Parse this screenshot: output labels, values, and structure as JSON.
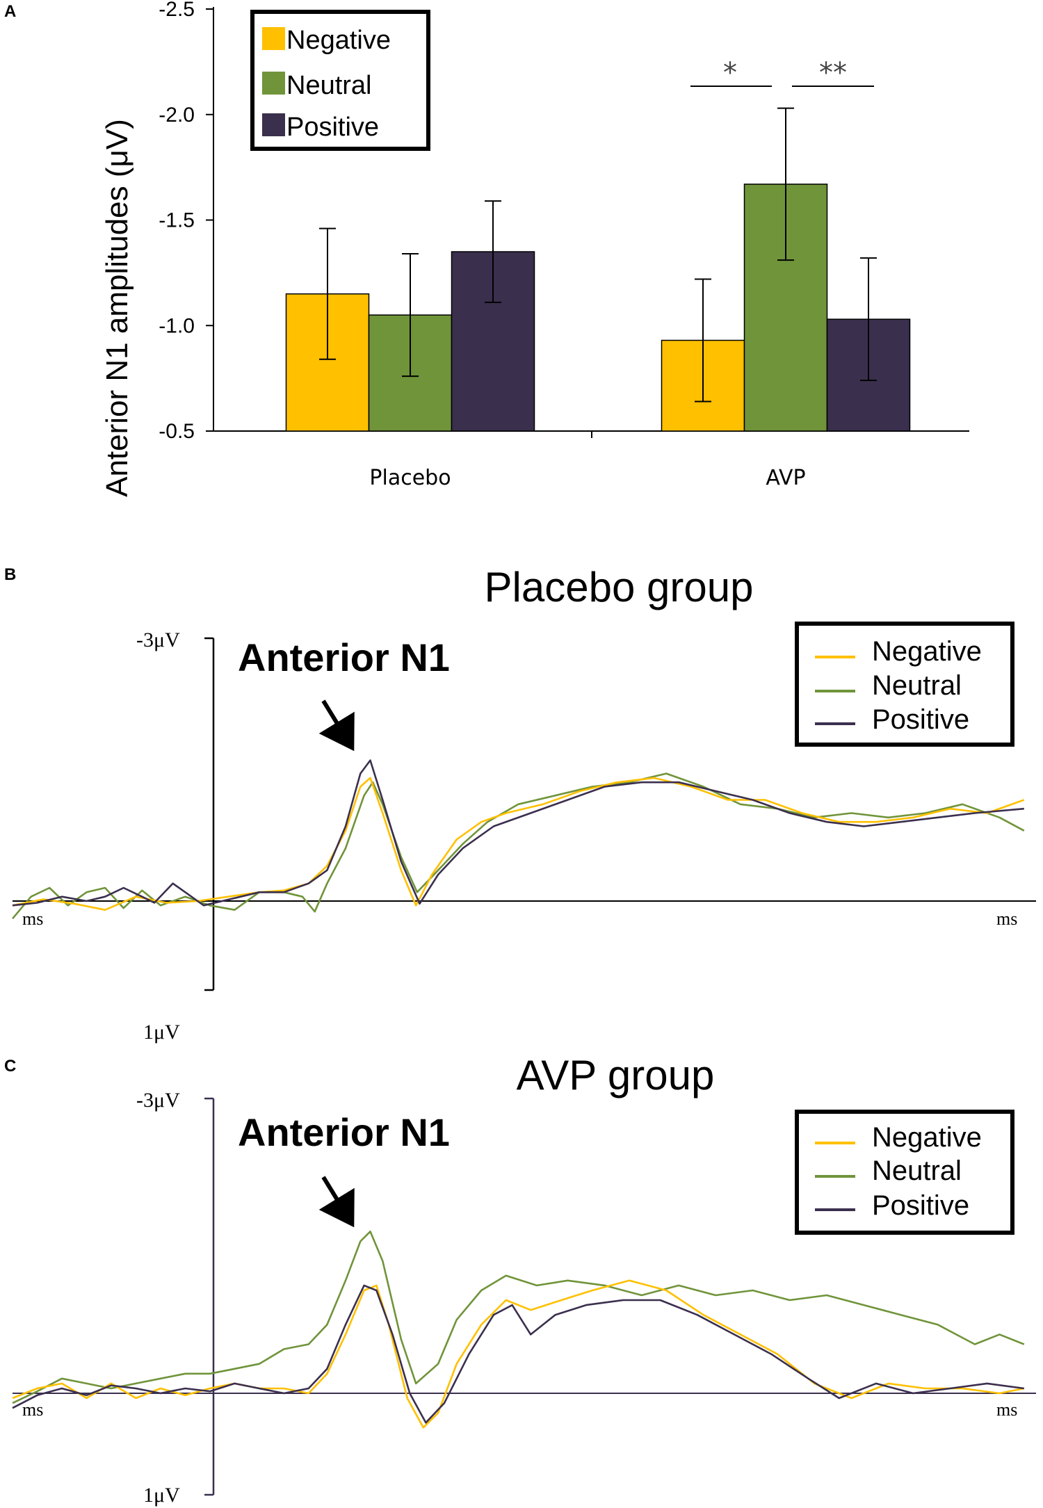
{
  "colors": {
    "negative": "#FFC000",
    "neutral": "#70943A",
    "positive": "#3B2F4E"
  },
  "chart_data": [
    {
      "panel": "A",
      "type": "bar",
      "title": "",
      "xlabel": "",
      "ylabel": "Anterior N1 amplitudes (μV)",
      "ylim": [
        -0.5,
        -2.5
      ],
      "ytick_labels": [
        "-0.5",
        "-1.0",
        "-1.5",
        "-2.0",
        "-2.5"
      ],
      "categories": [
        "Placebo",
        "AVP"
      ],
      "series": [
        {
          "name": "Negative",
          "values": [
            -1.15,
            -0.93
          ],
          "errors": [
            0.31,
            0.29
          ]
        },
        {
          "name": "Neutral",
          "values": [
            -1.05,
            -1.67
          ],
          "errors": [
            0.29,
            0.36
          ]
        },
        {
          "name": "Positive",
          "values": [
            -1.35,
            -1.03
          ],
          "errors": [
            0.24,
            0.29
          ]
        }
      ],
      "legend": [
        "Negative",
        "Neutral",
        "Positive"
      ],
      "significance": [
        "*",
        "**"
      ]
    },
    {
      "panel": "B",
      "type": "line",
      "title": "Placebo group",
      "y_top_label": "-3μV",
      "y_bottom_label": "1μV",
      "x_left_label": "ms",
      "x_right_label": "ms",
      "annotation": "Anterior N1",
      "ylim": [
        1,
        -3
      ],
      "legend": [
        "Negative",
        "Neutral",
        "Positive"
      ],
      "series": [
        {
          "name": "Negative",
          "points": [
            [
              -200,
              0.05
            ],
            [
              -175,
              -0.02
            ],
            [
              -150,
              0.03
            ],
            [
              -125,
              0.1
            ],
            [
              -100,
              -0.05
            ],
            [
              -75,
              0.02
            ],
            [
              -50,
              0.0
            ],
            [
              -25,
              -0.05
            ],
            [
              0,
              -0.1
            ],
            [
              20,
              -0.12
            ],
            [
              40,
              -0.2
            ],
            [
              55,
              -0.4
            ],
            [
              70,
              -0.8
            ],
            [
              82,
              -1.3
            ],
            [
              90,
              -1.4
            ],
            [
              100,
              -1.0
            ],
            [
              115,
              -0.35
            ],
            [
              127,
              0.05
            ],
            [
              140,
              -0.3
            ],
            [
              160,
              -0.7
            ],
            [
              180,
              -0.9
            ],
            [
              200,
              -1.0
            ],
            [
              230,
              -1.1
            ],
            [
              260,
              -1.25
            ],
            [
              290,
              -1.35
            ],
            [
              320,
              -1.4
            ],
            [
              350,
              -1.3
            ],
            [
              380,
              -1.15
            ],
            [
              410,
              -1.15
            ],
            [
              440,
              -1.0
            ],
            [
              470,
              -0.9
            ],
            [
              500,
              -0.9
            ],
            [
              530,
              -0.95
            ],
            [
              560,
              -1.05
            ],
            [
              590,
              -1.0
            ],
            [
              620,
              -1.15
            ]
          ]
        },
        {
          "name": "Neutral",
          "points": [
            [
              -200,
              0.2
            ],
            [
              -185,
              -0.05
            ],
            [
              -170,
              -0.15
            ],
            [
              -155,
              0.05
            ],
            [
              -140,
              -0.1
            ],
            [
              -125,
              -0.15
            ],
            [
              -110,
              0.08
            ],
            [
              -95,
              -0.12
            ],
            [
              -80,
              0.05
            ],
            [
              -60,
              -0.05
            ],
            [
              -40,
              0.05
            ],
            [
              -20,
              0.1
            ],
            [
              0,
              -0.1
            ],
            [
              20,
              -0.1
            ],
            [
              35,
              -0.05
            ],
            [
              45,
              0.12
            ],
            [
              55,
              -0.2
            ],
            [
              70,
              -0.6
            ],
            [
              85,
              -1.2
            ],
            [
              92,
              -1.35
            ],
            [
              100,
              -1.1
            ],
            [
              115,
              -0.5
            ],
            [
              128,
              -0.1
            ],
            [
              145,
              -0.35
            ],
            [
              165,
              -0.65
            ],
            [
              185,
              -0.9
            ],
            [
              210,
              -1.1
            ],
            [
              240,
              -1.2
            ],
            [
              270,
              -1.3
            ],
            [
              300,
              -1.35
            ],
            [
              330,
              -1.45
            ],
            [
              360,
              -1.3
            ],
            [
              390,
              -1.1
            ],
            [
              420,
              -1.05
            ],
            [
              450,
              -0.95
            ],
            [
              480,
              -1.0
            ],
            [
              510,
              -0.95
            ],
            [
              540,
              -1.0
            ],
            [
              570,
              -1.1
            ],
            [
              600,
              -0.95
            ],
            [
              620,
              -0.8
            ]
          ]
        },
        {
          "name": "Positive",
          "points": [
            [
              -200,
              0.05
            ],
            [
              -180,
              0.02
            ],
            [
              -160,
              -0.05
            ],
            [
              -140,
              0.0
            ],
            [
              -125,
              -0.05
            ],
            [
              -110,
              -0.15
            ],
            [
              -95,
              -0.05
            ],
            [
              -85,
              0.02
            ],
            [
              -70,
              -0.2
            ],
            [
              -60,
              -0.1
            ],
            [
              -45,
              0.05
            ],
            [
              -30,
              0.0
            ],
            [
              -15,
              -0.05
            ],
            [
              0,
              -0.1
            ],
            [
              20,
              -0.1
            ],
            [
              40,
              -0.2
            ],
            [
              55,
              -0.35
            ],
            [
              70,
              -0.85
            ],
            [
              82,
              -1.45
            ],
            [
              90,
              -1.6
            ],
            [
              100,
              -1.15
            ],
            [
              115,
              -0.45
            ],
            [
              130,
              0.03
            ],
            [
              145,
              -0.3
            ],
            [
              165,
              -0.6
            ],
            [
              190,
              -0.85
            ],
            [
              220,
              -1.0
            ],
            [
              250,
              -1.15
            ],
            [
              280,
              -1.3
            ],
            [
              310,
              -1.35
            ],
            [
              340,
              -1.35
            ],
            [
              370,
              -1.25
            ],
            [
              400,
              -1.15
            ],
            [
              430,
              -1.0
            ],
            [
              460,
              -0.9
            ],
            [
              490,
              -0.85
            ],
            [
              520,
              -0.9
            ],
            [
              550,
              -0.95
            ],
            [
              580,
              -1.0
            ],
            [
              620,
              -1.05
            ]
          ]
        }
      ]
    },
    {
      "panel": "C",
      "type": "line",
      "title": "AVP group",
      "y_top_label": "-3μV",
      "y_bottom_label": "1μV",
      "x_left_label": "ms",
      "x_right_label": "ms",
      "annotation": "Anterior N1",
      "ylim": [
        1,
        -3
      ],
      "legend": [
        "Negative",
        "Neutral",
        "Positive"
      ],
      "series": [
        {
          "name": "Negative",
          "points": [
            [
              -200,
              0.05
            ],
            [
              -180,
              -0.05
            ],
            [
              -160,
              -0.1
            ],
            [
              -140,
              0.05
            ],
            [
              -120,
              -0.1
            ],
            [
              -100,
              0.05
            ],
            [
              -80,
              -0.05
            ],
            [
              -60,
              0.02
            ],
            [
              -40,
              -0.05
            ],
            [
              -20,
              -0.1
            ],
            [
              0,
              -0.05
            ],
            [
              20,
              -0.05
            ],
            [
              40,
              0.0
            ],
            [
              55,
              -0.2
            ],
            [
              70,
              -0.6
            ],
            [
              85,
              -1.05
            ],
            [
              95,
              -1.1
            ],
            [
              105,
              -0.7
            ],
            [
              120,
              0.05
            ],
            [
              133,
              0.35
            ],
            [
              145,
              0.2
            ],
            [
              160,
              -0.3
            ],
            [
              180,
              -0.7
            ],
            [
              200,
              -0.95
            ],
            [
              220,
              -0.85
            ],
            [
              245,
              -0.95
            ],
            [
              270,
              -1.05
            ],
            [
              300,
              -1.15
            ],
            [
              330,
              -1.05
            ],
            [
              360,
              -0.8
            ],
            [
              390,
              -0.6
            ],
            [
              420,
              -0.4
            ],
            [
              450,
              -0.1
            ],
            [
              480,
              0.05
            ],
            [
              510,
              -0.1
            ],
            [
              540,
              -0.05
            ],
            [
              570,
              -0.05
            ],
            [
              600,
              0.0
            ],
            [
              620,
              -0.05
            ]
          ]
        },
        {
          "name": "Neutral",
          "points": [
            [
              -200,
              0.1
            ],
            [
              -180,
              -0.02
            ],
            [
              -160,
              -0.15
            ],
            [
              -140,
              -0.1
            ],
            [
              -120,
              -0.05
            ],
            [
              -100,
              -0.1
            ],
            [
              -80,
              -0.15
            ],
            [
              -60,
              -0.2
            ],
            [
              -40,
              -0.2
            ],
            [
              -20,
              -0.25
            ],
            [
              0,
              -0.3
            ],
            [
              20,
              -0.45
            ],
            [
              40,
              -0.5
            ],
            [
              55,
              -0.7
            ],
            [
              70,
              -1.15
            ],
            [
              82,
              -1.55
            ],
            [
              90,
              -1.65
            ],
            [
              100,
              -1.35
            ],
            [
              115,
              -0.55
            ],
            [
              127,
              -0.1
            ],
            [
              145,
              -0.3
            ],
            [
              160,
              -0.75
            ],
            [
              180,
              -1.05
            ],
            [
              200,
              -1.2
            ],
            [
              225,
              -1.1
            ],
            [
              250,
              -1.15
            ],
            [
              280,
              -1.1
            ],
            [
              310,
              -1.0
            ],
            [
              340,
              -1.1
            ],
            [
              370,
              -1.0
            ],
            [
              400,
              -1.05
            ],
            [
              430,
              -0.95
            ],
            [
              460,
              -1.0
            ],
            [
              490,
              -0.9
            ],
            [
              520,
              -0.8
            ],
            [
              550,
              -0.7
            ],
            [
              580,
              -0.5
            ],
            [
              600,
              -0.6
            ],
            [
              620,
              -0.5
            ]
          ]
        },
        {
          "name": "Positive",
          "points": [
            [
              -200,
              0.15
            ],
            [
              -180,
              0.02
            ],
            [
              -160,
              -0.05
            ],
            [
              -140,
              0.02
            ],
            [
              -120,
              -0.08
            ],
            [
              -100,
              -0.05
            ],
            [
              -80,
              0.0
            ],
            [
              -60,
              -0.05
            ],
            [
              -40,
              -0.02
            ],
            [
              -20,
              -0.1
            ],
            [
              0,
              -0.05
            ],
            [
              20,
              0.0
            ],
            [
              40,
              -0.05
            ],
            [
              55,
              -0.25
            ],
            [
              70,
              -0.7
            ],
            [
              85,
              -1.1
            ],
            [
              95,
              -1.05
            ],
            [
              108,
              -0.6
            ],
            [
              122,
              0.0
            ],
            [
              135,
              0.3
            ],
            [
              150,
              0.1
            ],
            [
              170,
              -0.4
            ],
            [
              190,
              -0.8
            ],
            [
              205,
              -0.9
            ],
            [
              220,
              -0.6
            ],
            [
              240,
              -0.8
            ],
            [
              265,
              -0.9
            ],
            [
              295,
              -0.95
            ],
            [
              325,
              -0.95
            ],
            [
              355,
              -0.8
            ],
            [
              385,
              -0.6
            ],
            [
              415,
              -0.4
            ],
            [
              445,
              -0.15
            ],
            [
              470,
              0.05
            ],
            [
              500,
              -0.1
            ],
            [
              530,
              0.0
            ],
            [
              560,
              -0.05
            ],
            [
              590,
              -0.1
            ],
            [
              620,
              -0.05
            ]
          ]
        }
      ]
    }
  ]
}
